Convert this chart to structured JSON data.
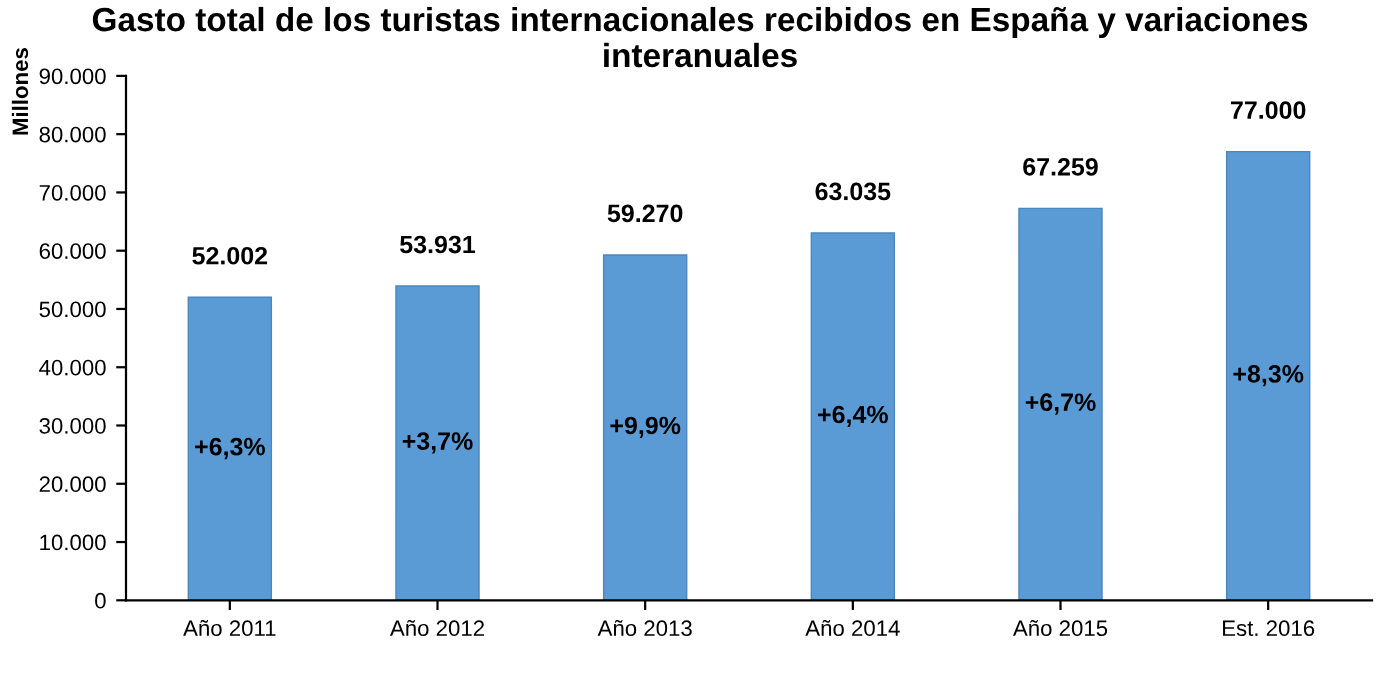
{
  "chart_data": {
    "type": "bar",
    "title": "Gasto total de los turistas internacionales recibidos en España y variaciones interanuales",
    "ylabel": "Millones",
    "categories": [
      "Año 2011",
      "Año 2012",
      "Año 2013",
      "Año 2014",
      "Año 2015",
      "Est. 2016"
    ],
    "values": [
      52002,
      53931,
      59270,
      63035,
      67259,
      77000
    ],
    "value_labels": [
      "52.002",
      "53.931",
      "59.270",
      "63.035",
      "67.259",
      "77.000"
    ],
    "color": "#5b9bd5",
    "ylim": [
      0,
      90000
    ],
    "yticks": [
      {
        "value": 0,
        "label": "0"
      },
      {
        "value": 10000,
        "label": "10.000"
      },
      {
        "value": 20000,
        "label": "20.000"
      },
      {
        "value": 30000,
        "label": "30.000"
      },
      {
        "value": 40000,
        "label": "40.000"
      },
      {
        "value": 50000,
        "label": "50.000"
      },
      {
        "value": 60000,
        "label": "60.000"
      },
      {
        "value": 70000,
        "label": "70.000"
      },
      {
        "value": 80000,
        "label": "80.000"
      },
      {
        "value": 90000,
        "label": "90.000"
      }
    ],
    "annotations": [
      "+6,3%",
      "+3,7%",
      "+9,9%",
      "+6,4%",
      "+6,7%",
      "+8,3%"
    ],
    "grid": false,
    "legend": false
  }
}
